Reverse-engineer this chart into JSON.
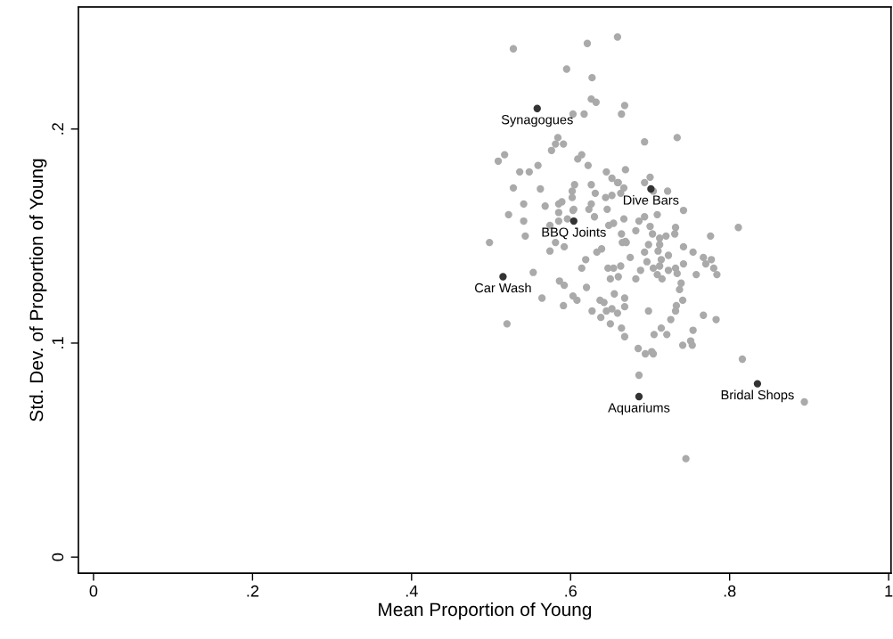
{
  "chart_data": {
    "type": "scatter",
    "xlabel": "Mean Proportion of Young",
    "ylabel": "Std. Dev. of Proportion of Young",
    "xlim": [
      -0.019,
      1.003
    ],
    "ylim": [
      -0.0075,
      0.257
    ],
    "xticks": [
      0,
      {
        "value": 0.2,
        "label": ".2"
      },
      {
        "value": 0.4,
        "label": ".4"
      },
      {
        "value": 0.6,
        "label": ".6"
      },
      {
        "value": 0.8,
        "label": ".8"
      },
      1
    ],
    "yticks": [
      0,
      {
        "value": 0.1,
        "label": ".1"
      },
      {
        "value": 0.2,
        "label": ".2"
      }
    ],
    "grid": false,
    "marker": "circle",
    "series": [
      {
        "color": "#aaaaaa",
        "x": [
          0.528,
          0.621,
          0.659,
          0.595,
          0.627,
          0.626,
          0.632,
          0.668,
          0.664,
          0.603,
          0.617,
          0.584,
          0.581,
          0.591,
          0.576,
          0.517,
          0.509,
          0.614,
          0.609,
          0.622,
          0.559,
          0.548,
          0.536,
          0.645,
          0.669,
          0.652,
          0.66,
          0.667,
          0.528,
          0.562,
          0.605,
          0.626,
          0.602,
          0.631,
          0.644,
          0.652,
          0.541,
          0.568,
          0.589,
          0.585,
          0.602,
          0.604,
          0.626,
          0.623,
          0.646,
          0.522,
          0.693,
          0.734,
          0.7,
          0.693,
          0.659,
          0.722,
          0.704,
          0.742,
          0.663,
          0.541,
          0.543,
          0.498,
          0.574,
          0.603,
          0.585,
          0.574,
          0.585,
          0.596,
          0.581,
          0.592,
          0.619,
          0.614,
          0.633,
          0.639,
          0.63,
          0.648,
          0.654,
          0.664,
          0.665,
          0.67,
          0.675,
          0.647,
          0.654,
          0.663,
          0.65,
          0.66,
          0.553,
          0.586,
          0.592,
          0.62,
          0.564,
          0.591,
          0.603,
          0.608,
          0.655,
          0.668,
          0.637,
          0.642,
          0.627,
          0.645,
          0.652,
          0.659,
          0.638,
          0.65,
          0.664,
          0.668,
          0.52,
          0.811,
          0.776,
          0.732,
          0.731,
          0.667,
          0.693,
          0.709,
          0.686,
          0.682,
          0.7,
          0.703,
          0.669,
          0.712,
          0.72,
          0.742,
          0.754,
          0.698,
          0.712,
          0.693,
          0.71,
          0.696,
          0.714,
          0.723,
          0.704,
          0.712,
          0.723,
          0.732,
          0.742,
          0.767,
          0.77,
          0.777,
          0.78,
          0.784,
          0.758,
          0.734,
          0.688,
          0.709,
          0.715,
          0.682,
          0.739,
          0.737,
          0.741,
          0.733,
          0.732,
          0.668,
          0.698,
          0.726,
          0.767,
          0.783,
          0.705,
          0.714,
          0.721,
          0.754,
          0.685,
          0.694,
          0.702,
          0.704,
          0.741,
          0.751,
          0.753,
          0.816,
          0.686,
          0.894,
          0.745
        ],
        "values": [
          0.2375,
          0.24,
          0.243,
          0.228,
          0.224,
          0.214,
          0.2125,
          0.211,
          0.207,
          0.207,
          0.207,
          0.196,
          0.193,
          0.193,
          0.19,
          0.188,
          0.185,
          0.188,
          0.186,
          0.183,
          0.183,
          0.18,
          0.18,
          0.18,
          0.181,
          0.177,
          0.175,
          0.1725,
          0.1725,
          0.172,
          0.174,
          0.174,
          0.171,
          0.17,
          0.168,
          0.169,
          0.165,
          0.164,
          0.166,
          0.165,
          0.168,
          0.1625,
          0.165,
          0.1625,
          0.1625,
          0.16,
          0.194,
          0.196,
          0.1775,
          0.175,
          0.175,
          0.171,
          0.171,
          0.162,
          0.17,
          0.157,
          0.15,
          0.147,
          0.143,
          0.162,
          0.161,
          0.155,
          0.157,
          0.158,
          0.147,
          0.145,
          0.139,
          0.135,
          0.1425,
          0.144,
          0.159,
          0.155,
          0.156,
          0.151,
          0.147,
          0.147,
          0.14,
          0.135,
          0.135,
          0.136,
          0.13,
          0.131,
          0.133,
          0.129,
          0.127,
          0.126,
          0.121,
          0.1175,
          0.122,
          0.12,
          0.123,
          0.121,
          0.12,
          0.119,
          0.115,
          0.115,
          0.116,
          0.114,
          0.112,
          0.109,
          0.107,
          0.103,
          0.109,
          0.154,
          0.15,
          0.154,
          0.151,
          0.158,
          0.159,
          0.16,
          0.157,
          0.1525,
          0.1545,
          0.151,
          0.1475,
          0.149,
          0.15,
          0.145,
          0.1425,
          0.146,
          0.146,
          0.1425,
          0.143,
          0.138,
          0.139,
          0.141,
          0.135,
          0.136,
          0.134,
          0.135,
          0.137,
          0.14,
          0.137,
          0.139,
          0.135,
          0.132,
          0.132,
          0.1325,
          0.134,
          0.132,
          0.13,
          0.13,
          0.128,
          0.125,
          0.12,
          0.1175,
          0.115,
          0.117,
          0.115,
          0.111,
          0.113,
          0.111,
          0.104,
          0.107,
          0.104,
          0.106,
          0.0975,
          0.095,
          0.096,
          0.095,
          0.099,
          0.101,
          0.099,
          0.0925,
          0.085,
          0.0725,
          0.046
        ]
      },
      {
        "color": "#333333",
        "x": [
          0.558,
          0.701,
          0.604,
          0.515,
          0.686,
          0.835
        ],
        "values": [
          0.2096,
          0.172,
          0.157,
          0.131,
          0.075,
          0.081
        ]
      }
    ],
    "annotations": [
      {
        "text": "Synagogues",
        "x": 0.558,
        "y": 0.2096
      },
      {
        "text": "Dive Bars",
        "x": 0.701,
        "y": 0.172
      },
      {
        "text": "BBQ Joints",
        "x": 0.604,
        "y": 0.157
      },
      {
        "text": "Car Wash",
        "x": 0.515,
        "y": 0.131
      },
      {
        "text": "Aquariums",
        "x": 0.686,
        "y": 0.075
      },
      {
        "text": "Bridal Shops",
        "x": 0.835,
        "y": 0.081
      }
    ]
  }
}
